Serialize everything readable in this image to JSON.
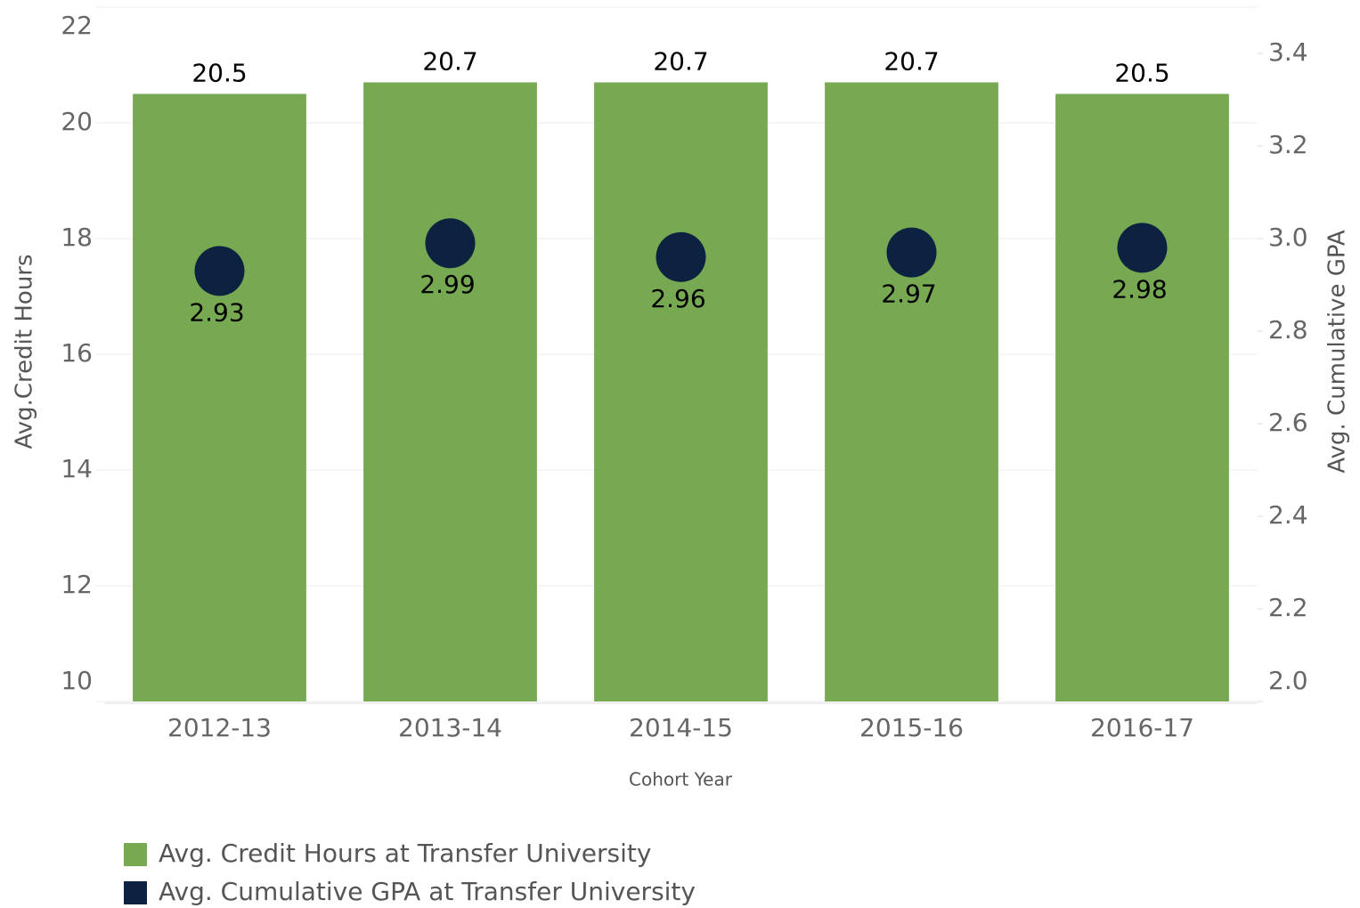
{
  "chart_data": {
    "type": "bar+scatter",
    "categories": [
      "2012-13",
      "2013-14",
      "2014-15",
      "2015-16",
      "2016-17"
    ],
    "x_label": "Cohort Year",
    "y_label": "Avg.Credit Hours",
    "y2_label": "Avg. Cumulative GPA",
    "series": [
      {
        "name": "Avg. Credit Hours at Transfer University",
        "color": "#76a952",
        "type": "bar",
        "values": [
          20.5,
          20.7,
          20.7,
          20.7,
          20.5
        ]
      },
      {
        "name": "Avg. Cumulative GPA at Transfer University",
        "color": "#0d2240",
        "type": "scatter",
        "axis": "y2",
        "values": [
          2.93,
          2.99,
          2.96,
          2.97,
          2.98
        ]
      }
    ],
    "ylim": [
      10,
      22
    ],
    "yticks": [
      10,
      12,
      14,
      16,
      18,
      20,
      22
    ],
    "y2lim": [
      2.0,
      3.5
    ],
    "y2ticks": [
      {
        "value": 2.0,
        "label": "2.0"
      },
      2.2,
      2.4,
      2.6,
      2.8,
      {
        "value": 3.0,
        "label": "3.0"
      },
      3.2,
      3.4
    ],
    "grid": true
  }
}
